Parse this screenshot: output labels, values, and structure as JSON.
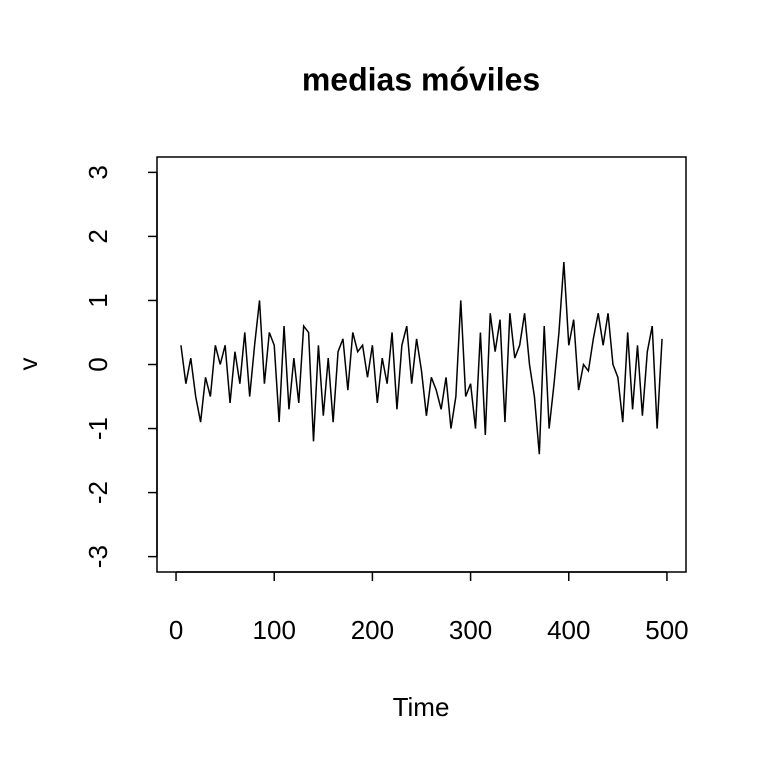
{
  "chart_data": {
    "type": "line",
    "title": "medias móviles",
    "x_label": "Time",
    "y_label": "v",
    "x": [
      5,
      10,
      15,
      20,
      25,
      30,
      35,
      40,
      45,
      50,
      55,
      60,
      65,
      70,
      75,
      80,
      85,
      90,
      95,
      100,
      105,
      110,
      115,
      120,
      125,
      130,
      135,
      140,
      145,
      150,
      155,
      160,
      165,
      170,
      175,
      180,
      185,
      190,
      195,
      200,
      205,
      210,
      215,
      220,
      225,
      230,
      235,
      240,
      245,
      250,
      255,
      260,
      265,
      270,
      275,
      280,
      285,
      290,
      295,
      300,
      305,
      310,
      315,
      320,
      325,
      330,
      335,
      340,
      345,
      350,
      355,
      360,
      365,
      370,
      375,
      380,
      385,
      390,
      395,
      400,
      405,
      410,
      415,
      420,
      425,
      430,
      435,
      440,
      445,
      450,
      455,
      460,
      465,
      470,
      475,
      480,
      485,
      490,
      495
    ],
    "series": [
      {
        "name": "v",
        "color": "#000000",
        "values": [
          0.3,
          -0.3,
          0.1,
          -0.5,
          -0.9,
          -0.2,
          -0.5,
          0.3,
          0.0,
          0.3,
          -0.6,
          0.2,
          -0.3,
          0.5,
          -0.5,
          0.3,
          1.0,
          -0.3,
          0.5,
          0.3,
          -0.9,
          0.6,
          -0.7,
          0.1,
          -0.6,
          0.6,
          0.5,
          -1.2,
          0.3,
          -0.8,
          0.1,
          -0.9,
          0.2,
          0.4,
          -0.4,
          0.5,
          0.2,
          0.3,
          -0.2,
          0.3,
          -0.6,
          0.1,
          -0.3,
          0.5,
          -0.7,
          0.3,
          0.6,
          -0.3,
          0.4,
          -0.1,
          -0.8,
          -0.2,
          -0.4,
          -0.7,
          -0.2,
          -1.0,
          -0.5,
          1.0,
          -0.5,
          -0.3,
          -1.0,
          0.5,
          -1.1,
          0.8,
          0.2,
          0.7,
          -0.9,
          0.8,
          0.1,
          0.3,
          0.8,
          0.0,
          -0.5,
          -1.4,
          0.6,
          -1.0,
          -0.3,
          0.5,
          1.6,
          0.3,
          0.7,
          -0.4,
          0.0,
          -0.1,
          0.4,
          0.8,
          0.3,
          0.8,
          0.0,
          -0.2,
          -0.9,
          0.5,
          -0.7,
          0.3,
          -0.8,
          0.2,
          0.6,
          -1.0,
          0.4
        ]
      }
    ],
    "xlim": [
      -19.4,
      519.4
    ],
    "ylim": [
      -3.24,
      3.24
    ],
    "xticks": [
      0,
      100,
      200,
      300,
      400,
      500
    ],
    "yticks": [
      -3,
      -2,
      -1,
      0,
      1,
      2,
      3
    ]
  }
}
